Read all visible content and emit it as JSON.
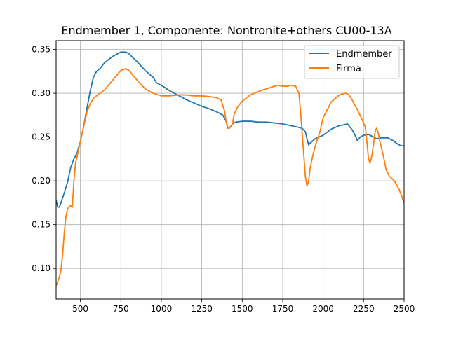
{
  "chart_data": {
    "type": "line",
    "title": "Endmember 1, Componente: Nontronite+others CU00-13A",
    "xlabel": "",
    "ylabel": "",
    "xlim": [
      350,
      2500
    ],
    "ylim": [
      0.065,
      0.36
    ],
    "xticks": [
      500,
      750,
      1000,
      1250,
      1500,
      1750,
      2000,
      2250,
      2500
    ],
    "xtick_labels": [
      "500",
      "750",
      "1000",
      "1250",
      "1500",
      "1750",
      "2000",
      "2250",
      "2500"
    ],
    "yticks": [
      0.1,
      0.15,
      0.2,
      0.25,
      0.3,
      0.35
    ],
    "ytick_labels": [
      "0.10",
      "0.15",
      "0.20",
      "0.25",
      "0.30",
      "0.35"
    ],
    "grid": true,
    "legend_position": "top-right",
    "series": [
      {
        "name": "Endmember",
        "color": "#1f77b4",
        "x": [
          350,
          360,
          370,
          380,
          400,
          420,
          440,
          460,
          480,
          500,
          520,
          540,
          560,
          580,
          600,
          620,
          650,
          700,
          750,
          780,
          800,
          850,
          900,
          950,
          970,
          1000,
          1050,
          1100,
          1150,
          1200,
          1250,
          1300,
          1350,
          1380,
          1400,
          1410,
          1420,
          1440,
          1460,
          1500,
          1550,
          1600,
          1650,
          1700,
          1750,
          1800,
          1850,
          1870,
          1890,
          1900,
          1910,
          1920,
          1950,
          2000,
          2050,
          2100,
          2130,
          2150,
          2180,
          2200,
          2210,
          2230,
          2250,
          2280,
          2300,
          2330,
          2360,
          2400,
          2430,
          2460,
          2480,
          2500
        ],
        "values": [
          0.178,
          0.17,
          0.17,
          0.175,
          0.186,
          0.198,
          0.215,
          0.225,
          0.232,
          0.245,
          0.262,
          0.282,
          0.302,
          0.318,
          0.325,
          0.328,
          0.335,
          0.342,
          0.347,
          0.347,
          0.345,
          0.336,
          0.326,
          0.318,
          0.312,
          0.309,
          0.303,
          0.298,
          0.293,
          0.289,
          0.285,
          0.282,
          0.278,
          0.275,
          0.268,
          0.261,
          0.26,
          0.265,
          0.267,
          0.268,
          0.268,
          0.267,
          0.267,
          0.266,
          0.265,
          0.263,
          0.261,
          0.26,
          0.256,
          0.248,
          0.241,
          0.243,
          0.248,
          0.252,
          0.259,
          0.263,
          0.264,
          0.265,
          0.258,
          0.251,
          0.246,
          0.25,
          0.252,
          0.253,
          0.251,
          0.248,
          0.249,
          0.249,
          0.246,
          0.242,
          0.24,
          0.24
        ]
      },
      {
        "name": "Firma",
        "color": "#ff7f0e",
        "x": [
          350,
          360,
          370,
          380,
          390,
          400,
          410,
          420,
          440,
          450,
          460,
          470,
          480,
          500,
          520,
          540,
          560,
          580,
          600,
          650,
          700,
          750,
          780,
          800,
          850,
          900,
          950,
          1000,
          1050,
          1100,
          1150,
          1200,
          1250,
          1300,
          1340,
          1370,
          1390,
          1400,
          1410,
          1420,
          1440,
          1450,
          1470,
          1500,
          1550,
          1600,
          1650,
          1700,
          1720,
          1750,
          1780,
          1800,
          1830,
          1850,
          1860,
          1870,
          1880,
          1890,
          1900,
          1910,
          1920,
          1940,
          1960,
          1980,
          2000,
          2050,
          2100,
          2140,
          2160,
          2180,
          2200,
          2220,
          2240,
          2260,
          2270,
          2280,
          2290,
          2300,
          2310,
          2320,
          2330,
          2340,
          2350,
          2370,
          2390,
          2410,
          2440,
          2470,
          2500
        ],
        "values": [
          0.08,
          0.085,
          0.09,
          0.098,
          0.115,
          0.14,
          0.158,
          0.168,
          0.172,
          0.17,
          0.2,
          0.22,
          0.228,
          0.245,
          0.262,
          0.278,
          0.288,
          0.294,
          0.297,
          0.304,
          0.315,
          0.326,
          0.328,
          0.326,
          0.315,
          0.305,
          0.3,
          0.297,
          0.297,
          0.298,
          0.298,
          0.297,
          0.297,
          0.296,
          0.295,
          0.292,
          0.28,
          0.268,
          0.26,
          0.26,
          0.265,
          0.276,
          0.284,
          0.291,
          0.298,
          0.302,
          0.305,
          0.308,
          0.309,
          0.308,
          0.308,
          0.309,
          0.308,
          0.3,
          0.28,
          0.255,
          0.23,
          0.205,
          0.194,
          0.2,
          0.215,
          0.232,
          0.245,
          0.256,
          0.272,
          0.29,
          0.298,
          0.3,
          0.298,
          0.292,
          0.285,
          0.278,
          0.27,
          0.262,
          0.245,
          0.225,
          0.22,
          0.228,
          0.24,
          0.255,
          0.26,
          0.255,
          0.245,
          0.23,
          0.212,
          0.205,
          0.2,
          0.19,
          0.175
        ]
      }
    ]
  }
}
